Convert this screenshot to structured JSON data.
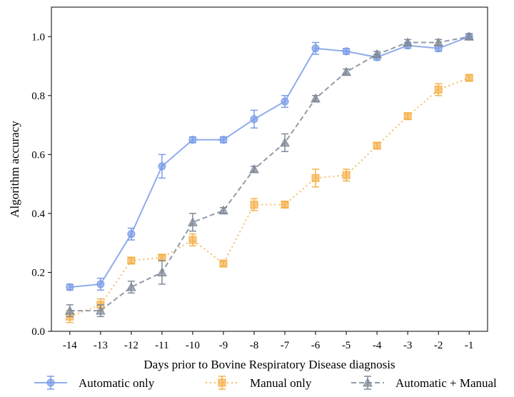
{
  "chart_data": {
    "type": "line",
    "xlabel": "Days prior to Bovine Respiratory Disease diagnosis",
    "ylabel": "Algorithm accuracy",
    "ylim": [
      0.0,
      1.1
    ],
    "x_ticks": [
      "-14",
      "-13",
      "-12",
      "-11",
      "-10",
      "-9",
      "-8",
      "-7",
      "-6",
      "-5",
      "-4",
      "-3",
      "-2",
      "-1"
    ],
    "y_ticks": [
      "0.0",
      "0.2",
      "0.4",
      "0.6",
      "0.8",
      "1.0"
    ],
    "x": [
      -14,
      -13,
      -12,
      -11,
      -10,
      -9,
      -8,
      -7,
      -6,
      -5,
      -4,
      -3,
      -2,
      -1
    ],
    "grid": false,
    "legend_position": "bottom",
    "series": [
      {
        "name": "Automatic only",
        "color": "#7b9de8",
        "marker": "circle",
        "line_style": "solid",
        "values": [
          0.15,
          0.16,
          0.33,
          0.56,
          0.65,
          0.65,
          0.72,
          0.78,
          0.96,
          0.95,
          0.93,
          0.97,
          0.96,
          1.0
        ],
        "errors": [
          0.01,
          0.02,
          0.02,
          0.04,
          0.01,
          0.01,
          0.03,
          0.02,
          0.02,
          0.01,
          0.01,
          0.01,
          0.01,
          0.01
        ]
      },
      {
        "name": "Manual only",
        "color": "#f5b04a",
        "marker": "square",
        "line_style": "dotted",
        "values": [
          0.05,
          0.09,
          0.24,
          0.25,
          0.31,
          0.23,
          0.43,
          0.43,
          0.52,
          0.53,
          0.63,
          0.73,
          0.82,
          0.86
        ],
        "errors": [
          0.02,
          0.02,
          0.01,
          0.01,
          0.02,
          0.01,
          0.02,
          0.01,
          0.03,
          0.02,
          0.01,
          0.01,
          0.02,
          0.01
        ]
      },
      {
        "name": "Automatic + Manual",
        "color": "#7f8a99",
        "marker": "triangle",
        "line_style": "dashed",
        "values": [
          0.07,
          0.07,
          0.15,
          0.2,
          0.37,
          0.41,
          0.55,
          0.64,
          0.79,
          0.88,
          0.94,
          0.98,
          0.98,
          1.0
        ],
        "errors": [
          0.02,
          0.02,
          0.02,
          0.04,
          0.03,
          0.01,
          0.01,
          0.03,
          0.01,
          0.01,
          0.01,
          0.01,
          0.01,
          0.01
        ]
      }
    ]
  }
}
